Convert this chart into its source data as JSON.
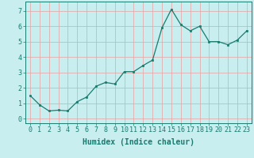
{
  "x": [
    0,
    1,
    2,
    3,
    4,
    5,
    6,
    7,
    8,
    9,
    10,
    11,
    12,
    13,
    14,
    15,
    16,
    17,
    18,
    19,
    20,
    21,
    22,
    23
  ],
  "y": [
    1.5,
    0.9,
    0.5,
    0.55,
    0.5,
    1.1,
    1.4,
    2.1,
    2.35,
    2.25,
    3.05,
    3.05,
    3.45,
    3.8,
    5.9,
    7.1,
    6.1,
    5.7,
    6.0,
    5.0,
    5.0,
    4.8,
    5.1,
    5.7
  ],
  "title": "",
  "xlabel": "Humidex (Indice chaleur)",
  "ylabel": "",
  "xlim": [
    -0.5,
    23.5
  ],
  "ylim": [
    -0.3,
    7.6
  ],
  "yticks": [
    0,
    1,
    2,
    3,
    4,
    5,
    6,
    7
  ],
  "xticks": [
    0,
    1,
    2,
    3,
    4,
    5,
    6,
    7,
    8,
    9,
    10,
    11,
    12,
    13,
    14,
    15,
    16,
    17,
    18,
    19,
    20,
    21,
    22,
    23
  ],
  "line_color": "#1a7a6e",
  "marker_color": "#1a7a6e",
  "bg_color": "#c8eef0",
  "grid_color": "#e8a0a0",
  "axis_label_color": "#1a7a6e",
  "tick_color": "#1a7a6e",
  "xlabel_fontsize": 7,
  "tick_fontsize": 6
}
